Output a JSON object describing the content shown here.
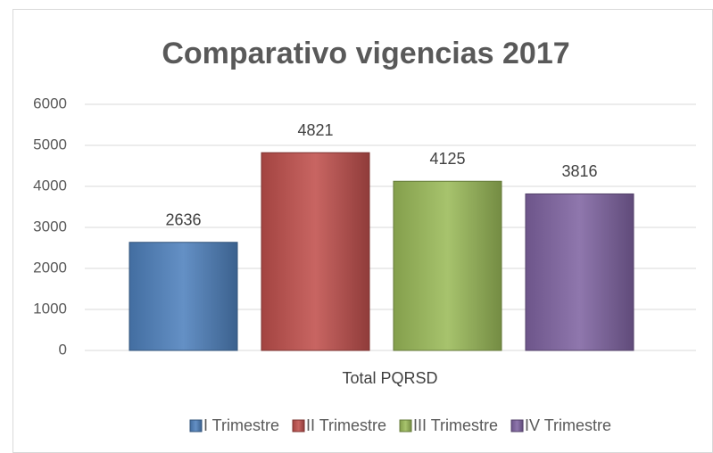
{
  "chart_data": {
    "type": "bar",
    "title": "Comparativo vigencias 2017",
    "categories": [
      "Total PQRSD"
    ],
    "series": [
      {
        "name": "I Trimestre",
        "color": "#4f81bd",
        "values": [
          2636
        ]
      },
      {
        "name": "II Trimestre",
        "color": "#c0504d",
        "values": [
          4821
        ]
      },
      {
        "name": "III Trimestre",
        "color": "#9bbb59",
        "values": [
          4125
        ]
      },
      {
        "name": "IV Trimestre",
        "color": "#8064a2",
        "values": [
          3816
        ]
      }
    ],
    "ylim": [
      0,
      6000
    ],
    "yticks": [
      0,
      1000,
      2000,
      3000,
      4000,
      5000,
      6000
    ],
    "grid": true,
    "legend": "bottom"
  }
}
